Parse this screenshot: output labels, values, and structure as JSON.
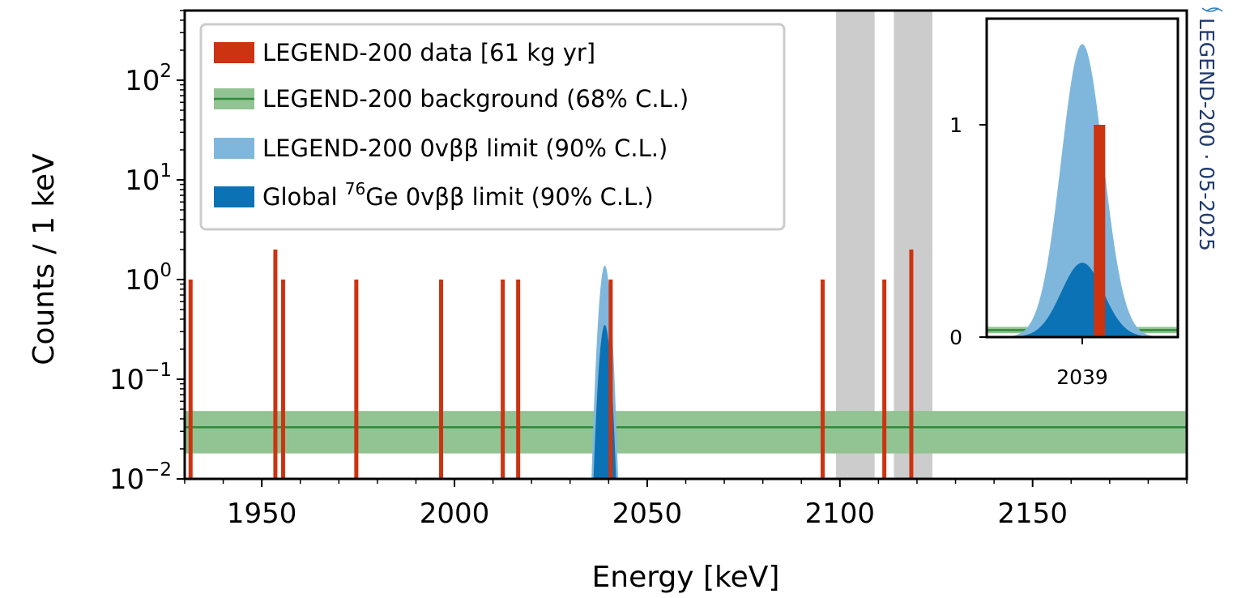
{
  "chart_data": [
    {
      "type": "bar",
      "xlabel": "Energy [keV]",
      "ylabel": "Counts / 1 keV",
      "xlim": [
        1930,
        2190
      ],
      "ylim": [
        0.01,
        500
      ],
      "yscale": "log",
      "grid": false,
      "legend_position": "top-left",
      "x_ticks": [
        "1950",
        "2000",
        "2050",
        "2100",
        "2150"
      ],
      "y_ticks": [
        {
          "value": 0.01,
          "base": "10",
          "exp": "−2"
        },
        {
          "value": 0.1,
          "base": "10",
          "exp": "−1"
        },
        {
          "value": 1,
          "base": "10",
          "exp": "0"
        },
        {
          "value": 10,
          "base": "10",
          "exp": "1"
        },
        {
          "value": 100,
          "base": "10",
          "exp": "2"
        }
      ],
      "series": [
        {
          "name": "LEGEND-200 data [61 kg yr]",
          "color": "#cc3311",
          "type": "events",
          "x": [
            1931,
            1953,
            1955,
            1974,
            1996,
            2012,
            2016,
            2040,
            2095,
            2111,
            2118
          ],
          "y": [
            1,
            2,
            1,
            1,
            1,
            1,
            1,
            1,
            1,
            1,
            2
          ]
        },
        {
          "name": "LEGEND-200 background (68% C.L.)",
          "color": "#2e8b3a",
          "band_color": "#91c393",
          "type": "band",
          "central": 0.033,
          "low": 0.018,
          "high": 0.048
        },
        {
          "name": "LEGEND-200 0vββ limit (90% C.L.)",
          "color": "#7fb7dc",
          "type": "peak",
          "center": 2039,
          "peak": 1.38,
          "sigma": 1.1
        },
        {
          "name": "Global ⁷⁶Ge 0vββ limit (90% C.L.)",
          "color": "#0a72b5",
          "type": "peak",
          "center": 2039,
          "peak": 0.35,
          "sigma": 1.1
        }
      ],
      "excluded_regions": [
        [
          2099,
          2109
        ],
        [
          2114,
          2124
        ]
      ],
      "excluded_color": "#cccccc"
    },
    {
      "type": "bar",
      "name": "inset",
      "xlim": [
        2034,
        2044
      ],
      "ylim": [
        0,
        1.5
      ],
      "yscale": "linear",
      "x_ticks": [
        "2039"
      ],
      "y_ticks": [
        "0",
        "1"
      ],
      "data_bar": {
        "x": [
          2039.6,
          2040.2
        ],
        "y": 1
      },
      "background_central": 0.033,
      "background_low": 0.018,
      "background_high": 0.048,
      "peak_l200": 1.38,
      "peak_global": 0.35
    }
  ],
  "legend": [
    {
      "text": "LEGEND-200 data [61 kg yr]"
    },
    {
      "text": "LEGEND-200 background (68% C.L.)"
    },
    {
      "text": "LEGEND-200 0vββ limit (90% C.L.)"
    },
    {
      "text_pre": "Global ",
      "text_sup": "76",
      "text_post": "Ge 0vββ limit (90% C.L.)"
    }
  ],
  "watermark": "LEGEND-200 · 05-2025",
  "watermark_logo": "LEGEND-200 logo"
}
